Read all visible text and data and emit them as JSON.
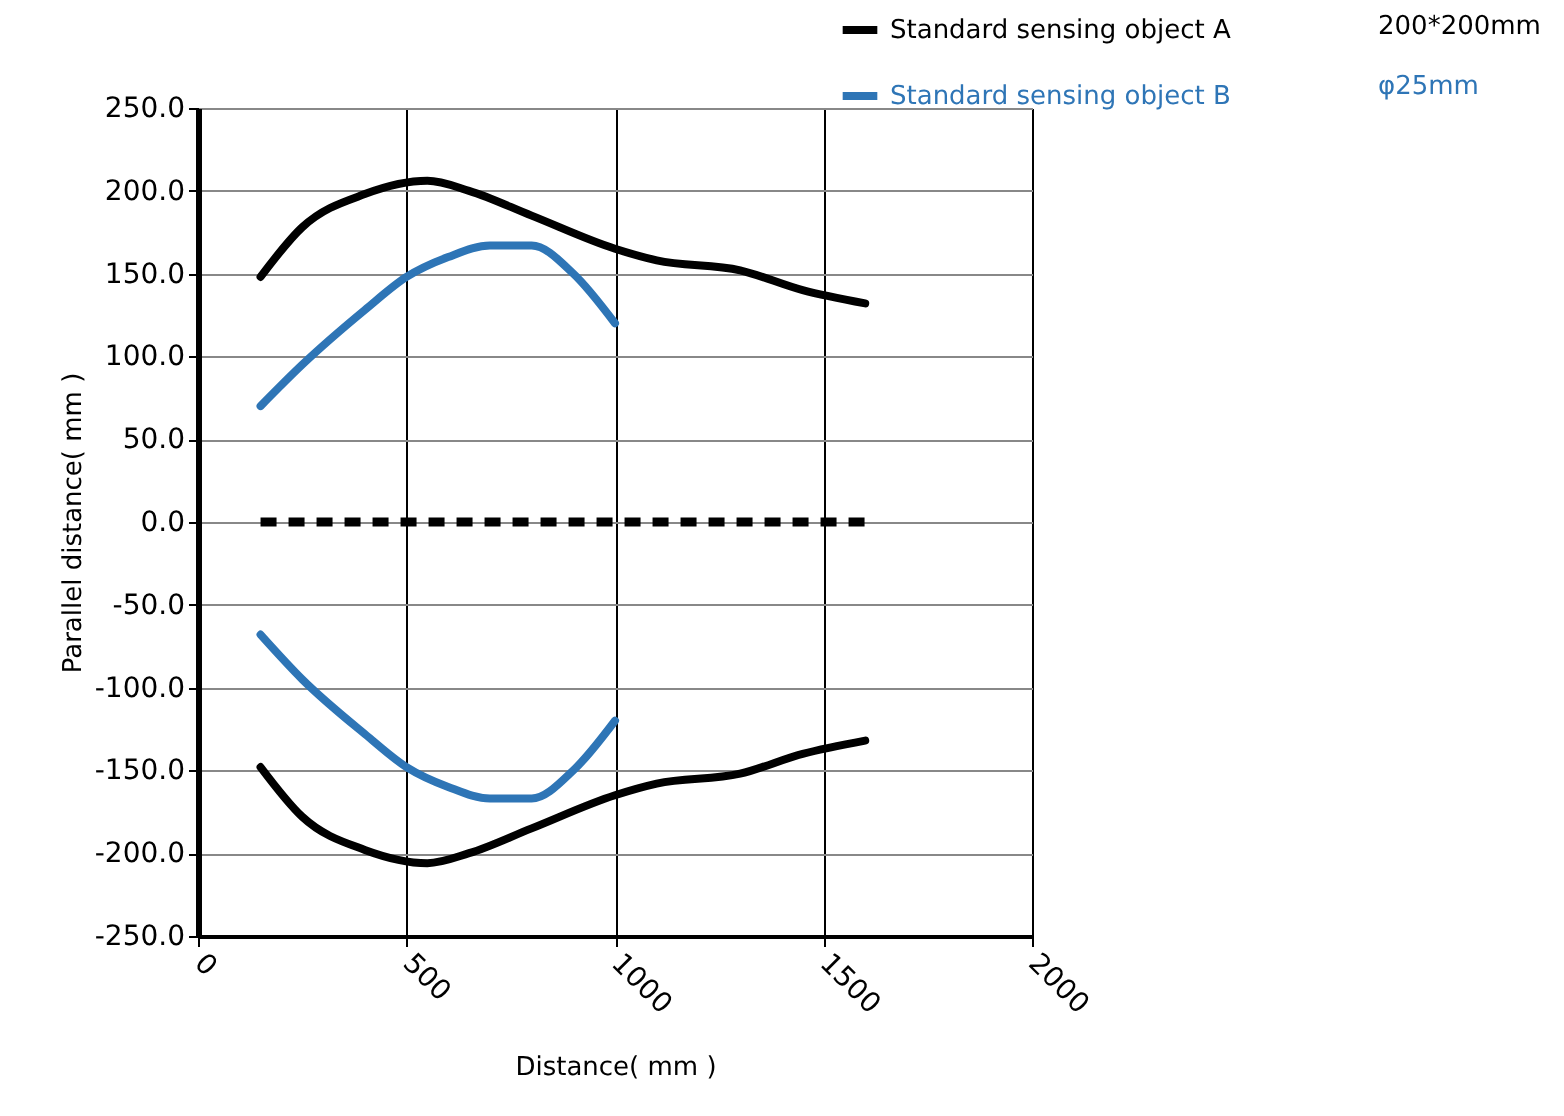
{
  "chart_data": {
    "type": "line",
    "xlabel": "Distance( mm )",
    "ylabel": "Parallel distance( mm )",
    "xlim": [
      0,
      2000
    ],
    "xticks": [
      0,
      500,
      1000,
      1500,
      2000
    ],
    "ylim": [
      -250,
      250
    ],
    "yticks": [
      {
        "value": 250,
        "label": "250.0"
      },
      {
        "value": 200,
        "label": "200.0"
      },
      {
        "value": 150,
        "label": "150.0"
      },
      {
        "value": 100,
        "label": "100.0"
      },
      {
        "value": 50,
        "label": "50.0"
      },
      {
        "value": 0,
        "label": "0.0"
      },
      {
        "value": -50,
        "label": "-50.0"
      },
      {
        "value": -100,
        "label": "-100.0"
      },
      {
        "value": -150,
        "label": "-150.0"
      },
      {
        "value": -200,
        "label": "-200.0"
      },
      {
        "value": -250,
        "label": "-250.0"
      }
    ],
    "grid": true,
    "legend": "top right",
    "line_style": "solid",
    "marker": "none",
    "annotations": [
      "200*200mm",
      "φ25mm"
    ],
    "series": [
      {
        "name": "Standard sensing object A",
        "color": "#000000",
        "x": [
          150,
          250,
          400,
          550,
          650,
          800,
          1000,
          1100,
          1300,
          1450,
          1600
        ],
        "values": [
          148,
          178,
          198,
          206,
          200,
          185,
          165,
          158,
          152,
          140,
          132
        ]
      },
      {
        "name": "Standard sensing object B",
        "color": "#2e75b6",
        "x": [
          150,
          250,
          400,
          500,
          600,
          700,
          800,
          900,
          1000
        ],
        "values": [
          70,
          95,
          128,
          148,
          160,
          167,
          167,
          150,
          120
        ]
      },
      {
        "color": "#000000",
        "x": [
          150,
          250,
          400,
          550,
          650,
          800,
          1000,
          1100,
          1300,
          1450,
          1600
        ],
        "values": [
          -148,
          -178,
          -198,
          -206,
          -200,
          -185,
          -165,
          -158,
          -152,
          -140,
          -132
        ]
      },
      {
        "color": "#2e75b6",
        "x": [
          150,
          250,
          400,
          500,
          600,
          700,
          800,
          900,
          1000
        ],
        "values": [
          -68,
          -95,
          -128,
          -148,
          -160,
          -167,
          -167,
          -150,
          -120
        ]
      },
      {
        "color": "#000000",
        "line_style": "dashed",
        "x": [
          150,
          1600
        ],
        "values": [
          0,
          0
        ]
      }
    ]
  }
}
